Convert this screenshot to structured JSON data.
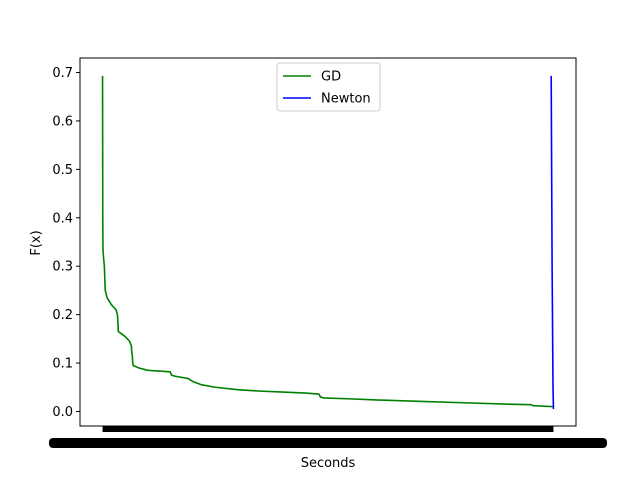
{
  "chart_data": {
    "type": "line",
    "title": "",
    "xlabel": "Seconds",
    "ylabel": "F(x)",
    "ylim": [
      -0.03,
      0.73
    ],
    "yticks": [
      0.0,
      0.1,
      0.2,
      0.3,
      0.4,
      0.5,
      0.6,
      0.7
    ],
    "ytick_labels": [
      "0.0",
      "0.1",
      "0.2",
      "0.3",
      "0.4",
      "0.5",
      "0.6",
      "0.7"
    ],
    "x_tick_labels_note": "x tick labels are overlapping and unreadable",
    "xlim": [
      -0.05,
      1.05
    ],
    "grid": false,
    "legend": "upper center",
    "series": [
      {
        "name": "GD",
        "color": "#008000",
        "x": [
          0.0,
          0.0005,
          0.001,
          0.002,
          0.004,
          0.006,
          0.01,
          0.02,
          0.03,
          0.033,
          0.034,
          0.035,
          0.05,
          0.06,
          0.064,
          0.065,
          0.066,
          0.067,
          0.068,
          0.08,
          0.1,
          0.15,
          0.153,
          0.16,
          0.19,
          0.2,
          0.22,
          0.25,
          0.3,
          0.35,
          0.4,
          0.45,
          0.48,
          0.483,
          0.49,
          0.55,
          0.6,
          0.7,
          0.8,
          0.9,
          0.95,
          0.955,
          1.0
        ],
        "y": [
          0.693,
          0.4,
          0.335,
          0.32,
          0.3,
          0.25,
          0.235,
          0.22,
          0.21,
          0.2,
          0.185,
          0.165,
          0.155,
          0.145,
          0.135,
          0.12,
          0.115,
          0.1,
          0.095,
          0.09,
          0.085,
          0.082,
          0.075,
          0.073,
          0.068,
          0.062,
          0.055,
          0.05,
          0.045,
          0.042,
          0.04,
          0.038,
          0.036,
          0.03,
          0.028,
          0.026,
          0.024,
          0.021,
          0.018,
          0.015,
          0.014,
          0.012,
          0.01
        ]
      },
      {
        "name": "Newton",
        "color": "#0000ff",
        "x": [
          0.995,
          0.997,
          0.999,
          1.0
        ],
        "y": [
          0.693,
          0.3,
          0.05,
          0.005
        ]
      }
    ]
  }
}
